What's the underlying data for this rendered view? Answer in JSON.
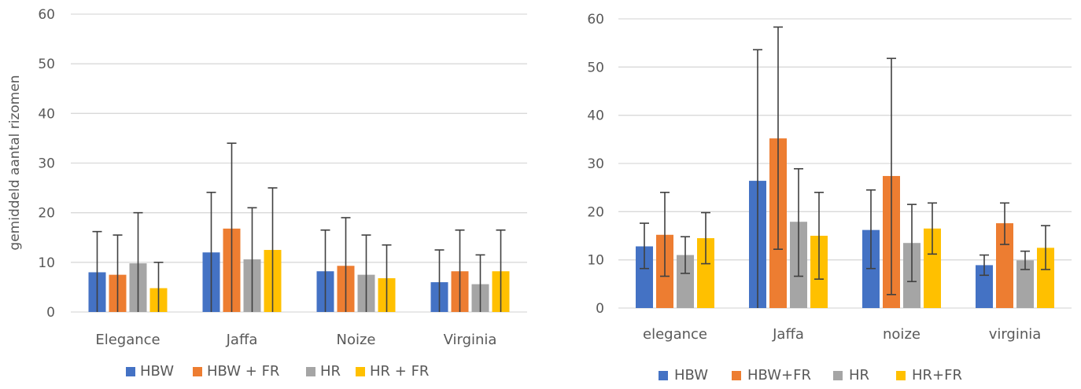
{
  "chart_data": [
    {
      "type": "bar",
      "title": "",
      "xlabel": "",
      "ylabel": "gemiddeld aantal rizomen",
      "ylim": [
        0,
        60
      ],
      "yticks": [
        "0",
        "10",
        "20",
        "30",
        "40",
        "50",
        "60"
      ],
      "grid": true,
      "legend_position": "bottom",
      "categories": [
        "Elegance",
        "Jaffa",
        "Noize",
        "Virginia"
      ],
      "series": [
        {
          "name": "HBW",
          "color": "#4472c4",
          "values": [
            8,
            12,
            8.2,
            6
          ],
          "err_low": [
            0,
            0,
            0,
            0
          ],
          "err_high": [
            16.2,
            24.1,
            16.5,
            12.5
          ]
        },
        {
          "name": "HBW + FR",
          "color": "#ed7d31",
          "values": [
            7.5,
            16.8,
            9.3,
            8.2
          ],
          "err_low": [
            0,
            0,
            0,
            0
          ],
          "err_high": [
            15.5,
            34,
            19,
            16.5
          ]
        },
        {
          "name": "HR",
          "color": "#a5a5a5",
          "values": [
            9.8,
            10.6,
            7.5,
            5.6
          ],
          "err_low": [
            0,
            0,
            0,
            0
          ],
          "err_high": [
            20,
            21,
            15.5,
            11.5
          ]
        },
        {
          "name": "HR + FR",
          "color": "#ffc000",
          "values": [
            4.8,
            12.5,
            6.8,
            8.2
          ],
          "err_low": [
            0,
            0,
            0,
            0
          ],
          "err_high": [
            10,
            25,
            13.5,
            16.5
          ]
        }
      ]
    },
    {
      "type": "bar",
      "title": "",
      "xlabel": "",
      "ylabel": "",
      "ylim": [
        0,
        60
      ],
      "yticks": [
        "0",
        "10",
        "20",
        "30",
        "40",
        "50",
        "60"
      ],
      "grid": true,
      "legend_position": "bottom",
      "categories": [
        "elegance",
        "Jaffa",
        "noize",
        "virginia"
      ],
      "series": [
        {
          "name": "HBW",
          "color": "#4472c4",
          "values": [
            12.8,
            26.4,
            16.2,
            8.9
          ],
          "err_low": [
            8.2,
            0,
            8.2,
            6.8
          ],
          "err_high": [
            17.6,
            53.6,
            24.5,
            11
          ]
        },
        {
          "name": "HBW+FR",
          "color": "#ed7d31",
          "values": [
            15.2,
            35.2,
            27.4,
            17.6
          ],
          "err_low": [
            6.6,
            12.2,
            2.8,
            13.2
          ],
          "err_high": [
            24,
            58.3,
            51.8,
            21.8
          ]
        },
        {
          "name": "HR",
          "color": "#a5a5a5",
          "values": [
            11,
            17.9,
            13.5,
            9.9
          ],
          "err_low": [
            7.2,
            6.6,
            5.5,
            8
          ],
          "err_high": [
            14.8,
            28.9,
            21.5,
            11.8
          ]
        },
        {
          "name": "HR+FR",
          "color": "#ffc000",
          "values": [
            14.5,
            15,
            16.5,
            12.5
          ],
          "err_low": [
            9.2,
            6,
            11.2,
            8
          ],
          "err_high": [
            19.8,
            24,
            21.8,
            17.1
          ]
        }
      ]
    }
  ]
}
